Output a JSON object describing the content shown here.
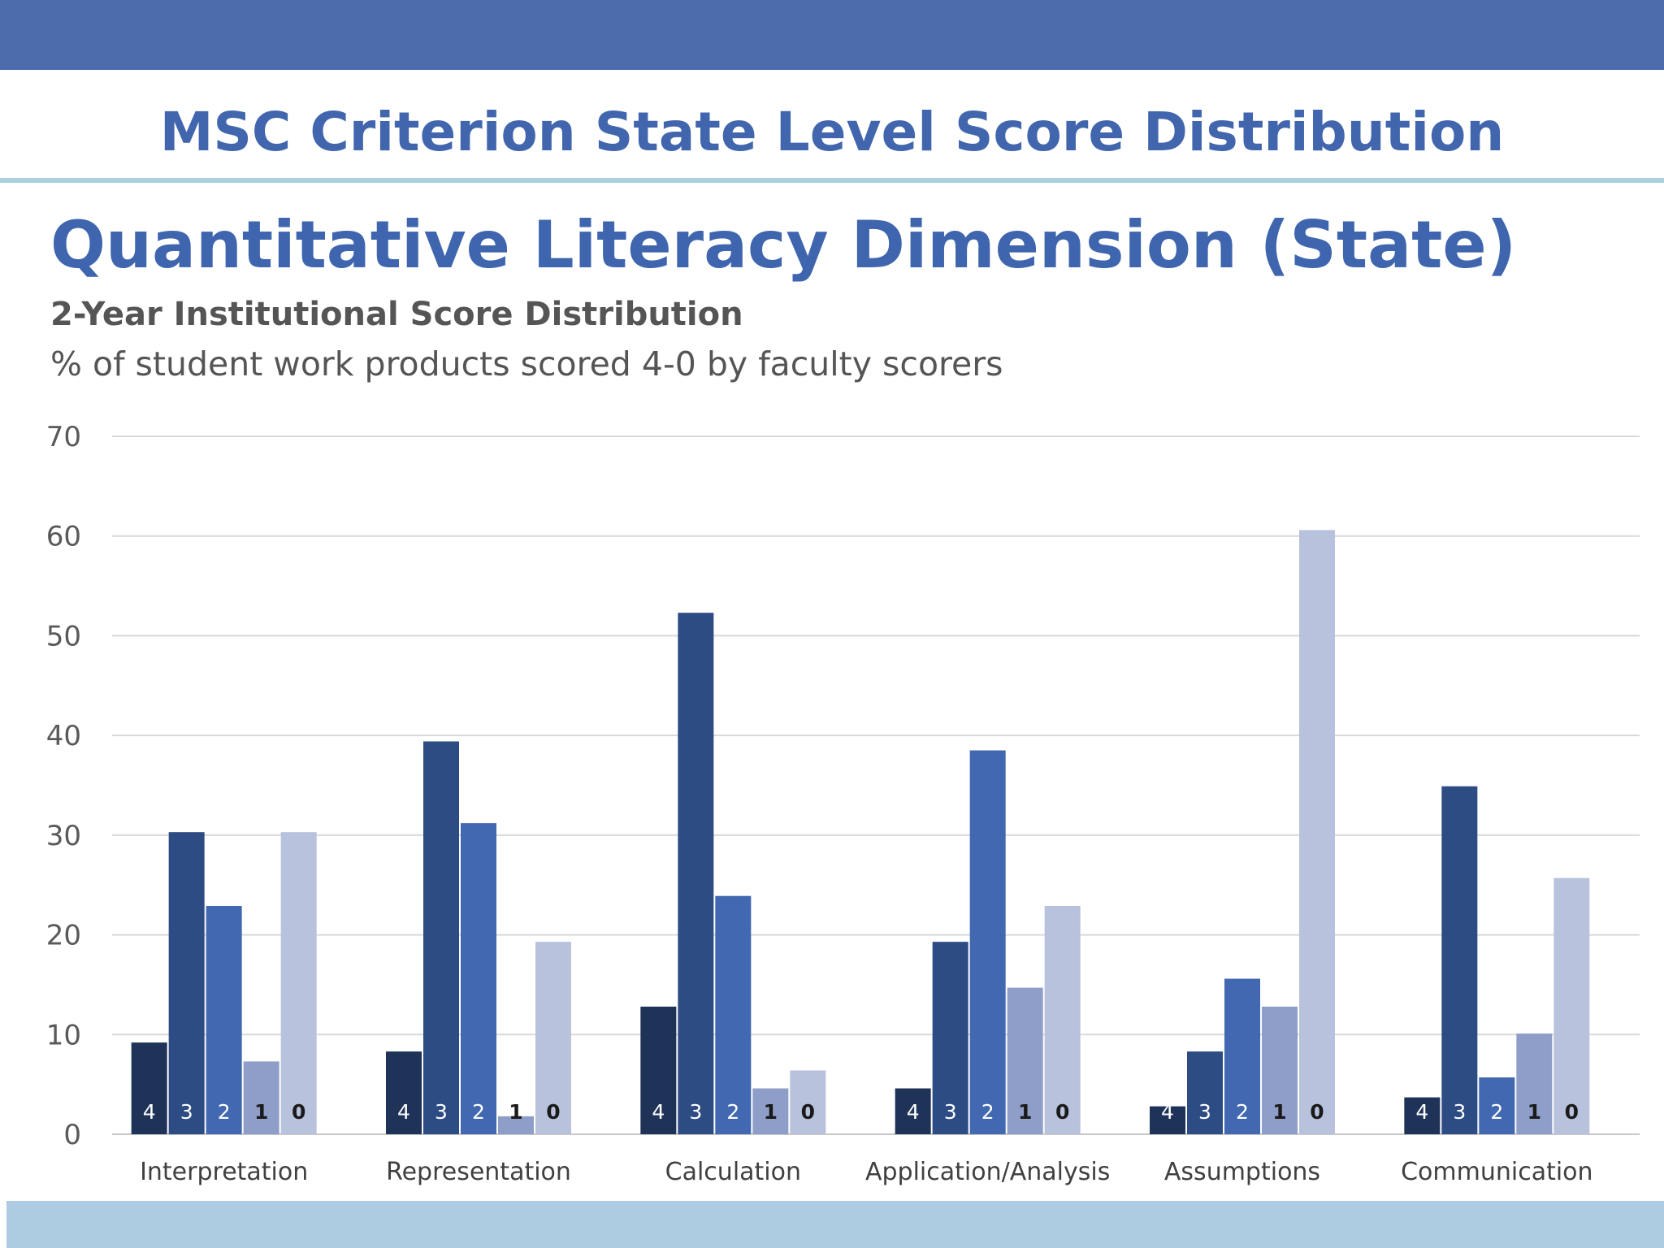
{
  "header": {
    "title": "MSC Criterion State Level Score Distribution"
  },
  "colors": {
    "top_bar": "#4c6bab",
    "header_rule": "#a9d2dc",
    "bottom_bar": "#adcce2",
    "title": "#3e65ad",
    "series": [
      "#1f3358",
      "#2e4c84",
      "#4168b0",
      "#8f9ec8",
      "#b8c2dc"
    ]
  },
  "chart_data": {
    "type": "bar",
    "title": "Quantitative Literacy Dimension (State)",
    "subtitle": "2-Year Institutional Score Distribution",
    "caption": "% of student work products scored 4-0 by faculty scorers",
    "xlabel": "",
    "ylabel": "",
    "ylim": [
      0,
      70
    ],
    "yticks": [
      "0",
      "10",
      "20",
      "30",
      "40",
      "50",
      "60",
      "70"
    ],
    "grid": true,
    "categories": [
      "Interpretation",
      "Representation",
      "Calculation",
      "Application/Analysis",
      "Assumptions",
      "Communication"
    ],
    "series": [
      {
        "name": "4",
        "values": [
          9.2,
          8.3,
          12.8,
          4.6,
          2.8,
          3.7
        ]
      },
      {
        "name": "3",
        "values": [
          30.3,
          39.4,
          52.3,
          19.3,
          8.3,
          34.9
        ]
      },
      {
        "name": "2",
        "values": [
          22.9,
          31.2,
          23.9,
          38.5,
          15.6,
          5.7
        ]
      },
      {
        "name": "1",
        "values": [
          7.3,
          1.8,
          4.6,
          14.7,
          12.8,
          10.1
        ]
      },
      {
        "name": "0",
        "values": [
          30.3,
          19.3,
          6.4,
          22.9,
          60.6,
          25.7
        ]
      }
    ]
  }
}
